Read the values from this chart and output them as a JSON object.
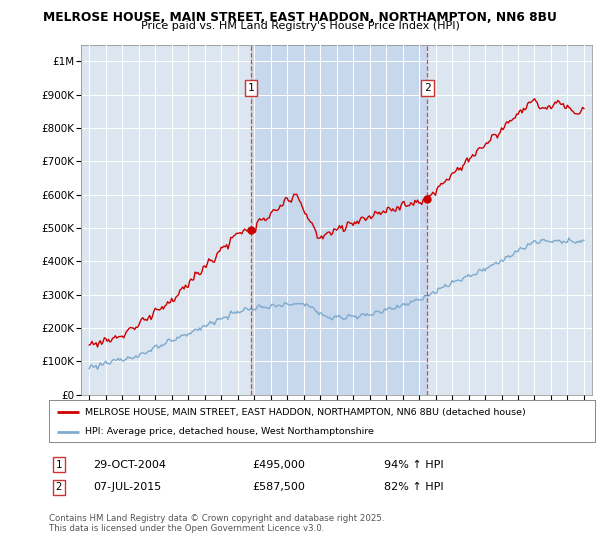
{
  "title_line1": "MELROSE HOUSE, MAIN STREET, EAST HADDON, NORTHAMPTON, NN6 8BU",
  "title_line2": "Price paid vs. HM Land Registry's House Price Index (HPI)",
  "yticks": [
    0,
    100000,
    200000,
    300000,
    400000,
    500000,
    600000,
    700000,
    800000,
    900000,
    1000000
  ],
  "ytick_labels": [
    "£0",
    "£100K",
    "£200K",
    "£300K",
    "£400K",
    "£500K",
    "£600K",
    "£700K",
    "£800K",
    "£900K",
    "£1M"
  ],
  "ylim": [
    0,
    1050000
  ],
  "sale1_year": 2004.83,
  "sale1_price": 495000,
  "sale2_year": 2015.51,
  "sale2_price": 587500,
  "red_line_color": "#cc0000",
  "blue_line_color": "#7eaacc",
  "vline_color": "#cc3333",
  "plot_bg": "#dce6f0",
  "shade_bg": "#c8d8ec",
  "grid_color": "#ffffff",
  "legend_line1": "MELROSE HOUSE, MAIN STREET, EAST HADDON, NORTHAMPTON, NN6 8BU (detached house)",
  "legend_line2": "HPI: Average price, detached house, West Northamptonshire",
  "sale1_date": "29-OCT-2004",
  "sale1_amount": "£495,000",
  "sale1_hpi": "94% ↑ HPI",
  "sale2_date": "07-JUL-2015",
  "sale2_amount": "£587,500",
  "sale2_hpi": "82% ↑ HPI",
  "footer": "Contains HM Land Registry data © Crown copyright and database right 2025.\nThis data is licensed under the Open Government Licence v3.0."
}
